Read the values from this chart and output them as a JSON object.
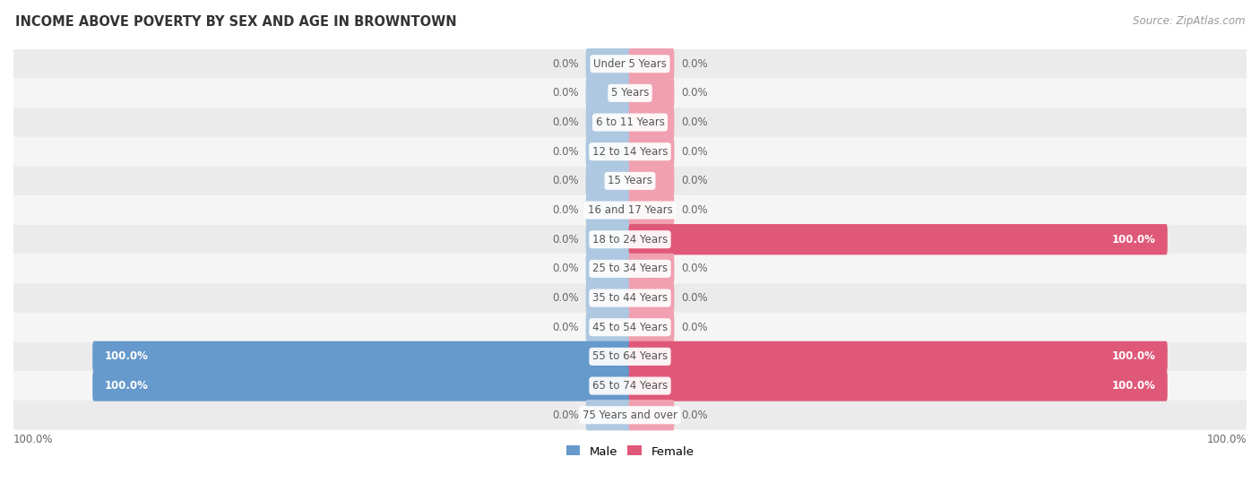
{
  "title": "INCOME ABOVE POVERTY BY SEX AND AGE IN BROWNTOWN",
  "source": "Source: ZipAtlas.com",
  "categories": [
    "Under 5 Years",
    "5 Years",
    "6 to 11 Years",
    "12 to 14 Years",
    "15 Years",
    "16 and 17 Years",
    "18 to 24 Years",
    "25 to 34 Years",
    "35 to 44 Years",
    "45 to 54 Years",
    "55 to 64 Years",
    "65 to 74 Years",
    "75 Years and over"
  ],
  "male_values": [
    0.0,
    0.0,
    0.0,
    0.0,
    0.0,
    0.0,
    0.0,
    0.0,
    0.0,
    0.0,
    100.0,
    100.0,
    0.0
  ],
  "female_values": [
    0.0,
    0.0,
    0.0,
    0.0,
    0.0,
    0.0,
    100.0,
    0.0,
    0.0,
    0.0,
    100.0,
    100.0,
    0.0
  ],
  "male_color_full": "#6699cc",
  "male_color_empty": "#adc8e0",
  "female_color_full": "#e05878",
  "female_color_empty": "#f0a0b0",
  "row_color_odd": "#ebebeb",
  "row_color_even": "#f5f5f5",
  "label_bg": "#ffffff",
  "label_text": "#555555",
  "value_text": "#666666",
  "legend_male": "Male",
  "legend_female": "Female"
}
